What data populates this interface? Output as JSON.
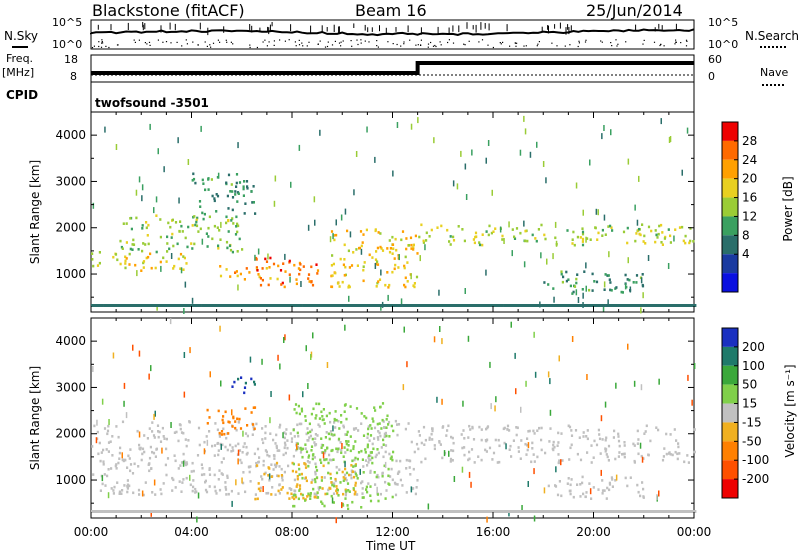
{
  "header": {
    "station": "Blackstone (fitACF)",
    "beam": "Beam 16",
    "date": "25/Jun/2014"
  },
  "strip": {
    "nsky_label": "N.Sky",
    "nsearch_label": "N.Search",
    "nsky_ticks": [
      "10^5",
      "10^0"
    ],
    "nsearch_ticks": [
      "10^5",
      "10^0"
    ],
    "freq_label": "Freq.",
    "freq_unit": "[MHz]",
    "freq_ticks": [
      "18",
      "8"
    ],
    "nave_label": "Nave",
    "nave_ticks": [
      "60",
      "0"
    ],
    "cpid_label": "CPID",
    "cpid_value": "twofsound -3501"
  },
  "power_panel": {
    "ylabel": "Slant Range [km]",
    "colorbar_label": "Power [dB]",
    "colorbar_ticks": [
      "28",
      "24",
      "20",
      "16",
      "12",
      "8",
      "4"
    ],
    "colors": [
      "#ee0000",
      "#ff6a00",
      "#ffa000",
      "#e8d020",
      "#9acc36",
      "#3aa060",
      "#2a6e6a",
      "#1a3aa0",
      "#0a10e0"
    ]
  },
  "velocity_panel": {
    "ylabel": "Slant Range [km]",
    "colorbar_label": "Velocity [m s⁻¹]",
    "colorbar_ticks": [
      "200",
      "100",
      "50",
      "15",
      "-15",
      "-50",
      "-100",
      "-200"
    ],
    "colors": [
      "#1a30c0",
      "#1f7a6a",
      "#3aa83a",
      "#80d04a",
      "#c0c0c0",
      "#f0b020",
      "#ff8000",
      "#ff5000",
      "#ee0000"
    ]
  },
  "xaxis": {
    "label": "Time UT",
    "ticks": [
      "00:00",
      "04:00",
      "08:00",
      "12:00",
      "16:00",
      "20:00",
      "00:00"
    ]
  },
  "chart_data": [
    {
      "type": "heatmap",
      "title": "Blackstone (fitACF) Beam 16 25/Jun/2014",
      "xlabel": "Time UT",
      "ylabel": "Slant Range [km]",
      "xlim": [
        "00:00",
        "24:00"
      ],
      "ylim": [
        180,
        4500
      ],
      "x_ticks": [
        "00:00",
        "04:00",
        "08:00",
        "12:00",
        "16:00",
        "20:00",
        "00:00"
      ],
      "y_ticks": [
        1000,
        2000,
        3000,
        4000
      ],
      "colorbar": {
        "label": "Power [dB]",
        "ticks": [
          4,
          8,
          12,
          16,
          20,
          24,
          28
        ]
      },
      "features": [
        {
          "t": [
            0.0,
            4.0
          ],
          "range": [
            1100,
            1500
          ],
          "power_db": 18
        },
        {
          "t": [
            1.0,
            6.0
          ],
          "range": [
            1500,
            2300
          ],
          "power_db": 14
        },
        {
          "t": [
            4.0,
            6.5
          ],
          "range": [
            2300,
            3200
          ],
          "power_db": 10
        },
        {
          "t": [
            5.0,
            7.5
          ],
          "range": [
            900,
            1200
          ],
          "power_db": 22
        },
        {
          "t": [
            6.5,
            9.0
          ],
          "range": [
            750,
            1400
          ],
          "power_db": 26
        },
        {
          "t": [
            9.5,
            13.0
          ],
          "range": [
            700,
            2000
          ],
          "power_db": 20
        },
        {
          "t": [
            13.0,
            24.0
          ],
          "range": [
            1650,
            2100
          ],
          "power_db": 16
        },
        {
          "t": [
            18.0,
            22.0
          ],
          "range": [
            600,
            1100
          ],
          "power_db": 10
        }
      ]
    },
    {
      "type": "heatmap",
      "title": "",
      "xlabel": "Time UT",
      "ylabel": "Slant Range [km]",
      "xlim": [
        "00:00",
        "24:00"
      ],
      "ylim": [
        180,
        4500
      ],
      "x_ticks": [
        "00:00",
        "04:00",
        "08:00",
        "12:00",
        "16:00",
        "20:00",
        "00:00"
      ],
      "y_ticks": [
        1000,
        2000,
        3000,
        4000
      ],
      "colorbar": {
        "label": "Velocity [m s⁻¹]",
        "ticks": [
          -200,
          -100,
          -50,
          -15,
          15,
          50,
          100,
          200
        ]
      },
      "features": [
        {
          "t": [
            0.0,
            13.0
          ],
          "range": [
            700,
            2300
          ],
          "velocity": 0
        },
        {
          "t": [
            13.0,
            24.0
          ],
          "range": [
            1400,
            2200
          ],
          "velocity": 0
        },
        {
          "t": [
            4.5,
            6.5
          ],
          "range": [
            2000,
            2600
          ],
          "velocity": -60
        },
        {
          "t": [
            5.5,
            6.5
          ],
          "range": [
            2900,
            3300
          ],
          "velocity": 200
        },
        {
          "t": [
            6.5,
            10.5
          ],
          "range": [
            600,
            1400
          ],
          "velocity": -40
        },
        {
          "t": [
            8.0,
            12.0
          ],
          "range": [
            400,
            2700
          ],
          "velocity": 40
        },
        {
          "t": [
            18.0,
            22.0
          ],
          "range": [
            600,
            1100
          ],
          "velocity": 0
        }
      ]
    }
  ]
}
